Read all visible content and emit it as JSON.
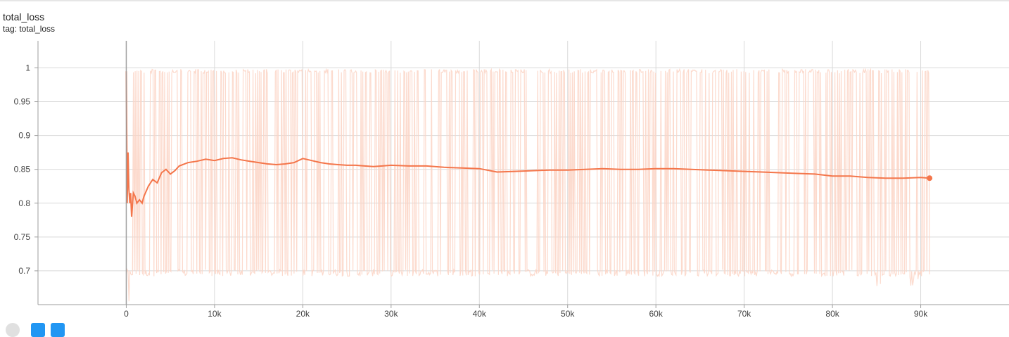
{
  "card": {
    "title": "total_loss",
    "tag_label": "tag: total_loss"
  },
  "colors": {
    "smoothed": "#f4764b",
    "raw": "#fbd3c4",
    "grid": "#d9d9d9",
    "axis": "#9e9e9e",
    "zero_line": "#9e9e9e"
  },
  "chart_data": {
    "type": "line",
    "title": "total_loss",
    "xlabel": "",
    "ylabel": "",
    "xlim": [
      -10000,
      100000
    ],
    "ylim": [
      0.65,
      1.04
    ],
    "x_ticks": [
      0,
      10000,
      20000,
      30000,
      40000,
      50000,
      60000,
      70000,
      80000,
      90000
    ],
    "x_tick_labels": [
      "0",
      "10k",
      "20k",
      "30k",
      "40k",
      "50k",
      "60k",
      "70k",
      "80k",
      "90k"
    ],
    "y_ticks": [
      0.7,
      0.75,
      0.8,
      0.85,
      0.9,
      0.95,
      1
    ],
    "y_tick_labels": [
      "0.7",
      "0.75",
      "0.8",
      "0.85",
      "0.9",
      "0.95",
      "1"
    ],
    "grid": true,
    "series": [
      {
        "role": "smoothed",
        "x": [
          0,
          100,
          200,
          300,
          400,
          500,
          600,
          800,
          1000,
          1200,
          1500,
          1800,
          2000,
          2500,
          3000,
          3500,
          4000,
          4500,
          5000,
          5500,
          6000,
          7000,
          8000,
          9000,
          10000,
          11000,
          12000,
          13000,
          14000,
          15000,
          16000,
          17000,
          18000,
          19000,
          20000,
          21000,
          22000,
          23000,
          24000,
          25000,
          26000,
          27000,
          28000,
          29000,
          30000,
          32000,
          34000,
          36000,
          38000,
          40000,
          42000,
          44000,
          46000,
          48000,
          50000,
          52000,
          54000,
          56000,
          58000,
          60000,
          62000,
          64000,
          66000,
          68000,
          70000,
          72000,
          74000,
          76000,
          78000,
          80000,
          82000,
          84000,
          86000,
          88000,
          90000,
          91000
        ],
        "y": [
          0.995,
          0.8,
          0.875,
          0.82,
          0.8,
          0.815,
          0.78,
          0.815,
          0.81,
          0.8,
          0.805,
          0.8,
          0.81,
          0.825,
          0.835,
          0.83,
          0.845,
          0.85,
          0.843,
          0.848,
          0.855,
          0.86,
          0.862,
          0.865,
          0.863,
          0.866,
          0.867,
          0.864,
          0.862,
          0.86,
          0.858,
          0.857,
          0.858,
          0.86,
          0.866,
          0.863,
          0.86,
          0.858,
          0.857,
          0.856,
          0.856,
          0.855,
          0.854,
          0.855,
          0.856,
          0.855,
          0.855,
          0.853,
          0.852,
          0.851,
          0.846,
          0.847,
          0.848,
          0.849,
          0.849,
          0.85,
          0.851,
          0.85,
          0.85,
          0.851,
          0.851,
          0.85,
          0.849,
          0.848,
          0.847,
          0.846,
          0.845,
          0.844,
          0.843,
          0.84,
          0.84,
          0.838,
          0.837,
          0.837,
          0.838,
          0.837
        ]
      },
      {
        "role": "raw",
        "x_range": [
          0,
          91000
        ],
        "y_high": 0.998,
        "y_low": 0.697,
        "min_value": 0.655
      }
    ]
  }
}
